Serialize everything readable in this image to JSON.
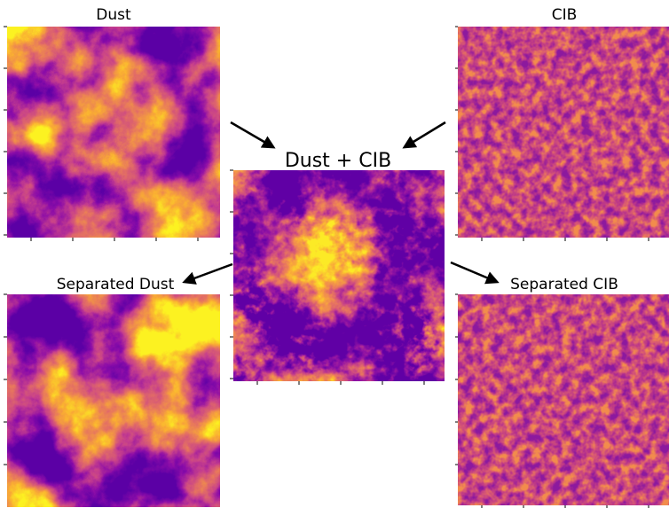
{
  "panels": [
    {
      "title": "Dust"
    },
    {
      "title": "CIB"
    },
    {
      "title": "Dust + CIB"
    },
    {
      "title": "Separated Dust"
    },
    {
      "title": "Separated CIB"
    }
  ]
}
